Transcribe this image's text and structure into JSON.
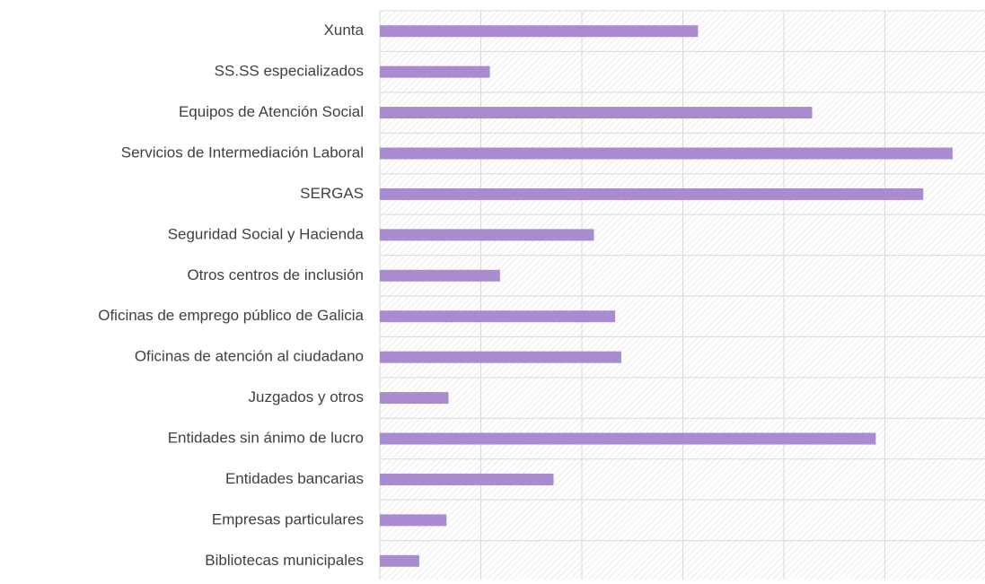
{
  "chart_data": {
    "type": "barh",
    "categories": [
      "Xunta",
      "SS.SS especializados",
      "Equipos de Atención Social",
      "Servicios de Intermediación Laboral",
      "SERGAS",
      "Seguridad Social y Hacienda",
      "Otros centros de inclusión",
      "Oficinas de emprego público de Galicia",
      "Oficinas de atención al ciudadano",
      "Juzgados y otros",
      "Entidades sin ánimo de lucro",
      "Entidades bancarias",
      "Empresas particulares",
      "Bibliotecas municipales"
    ],
    "values": [
      3.15,
      1.09,
      4.28,
      5.67,
      5.38,
      2.12,
      1.19,
      2.33,
      2.39,
      0.68,
      4.91,
      1.72,
      0.66,
      0.39
    ],
    "color": "#a98bd0",
    "xlim": [
      0,
      6
    ],
    "xticks": [
      0,
      1,
      2,
      3,
      4,
      5,
      6
    ],
    "grid": true
  }
}
